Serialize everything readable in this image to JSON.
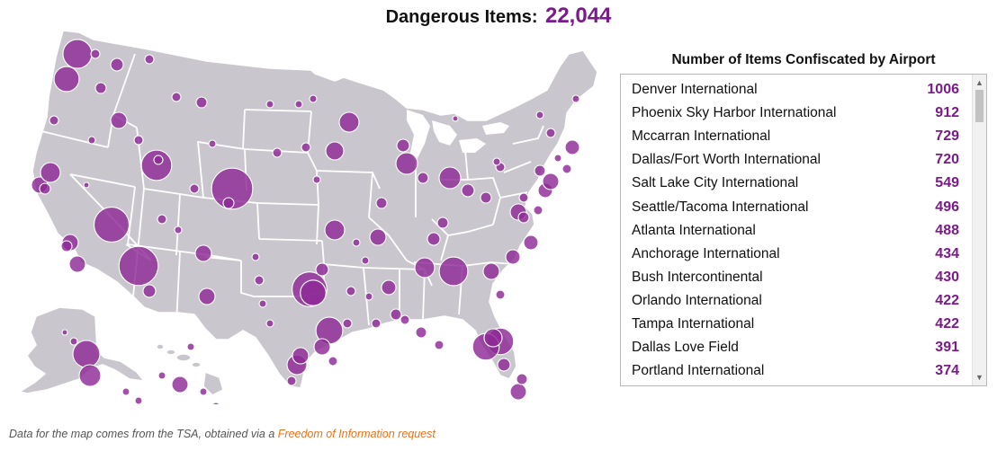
{
  "header": {
    "label": "Dangerous Items:",
    "count": "22,044"
  },
  "panel": {
    "title": "Number of Items Confiscated by Airport",
    "rows": [
      {
        "name": "Denver International",
        "value": "1006"
      },
      {
        "name": "Phoenix Sky Harbor International",
        "value": "912"
      },
      {
        "name": "Mccarran International",
        "value": "729"
      },
      {
        "name": "Dallas/Fort Worth International",
        "value": "720"
      },
      {
        "name": "Salt Lake City International",
        "value": "549"
      },
      {
        "name": "Seattle/Tacoma International",
        "value": "496"
      },
      {
        "name": "Atlanta International",
        "value": "488"
      },
      {
        "name": "Anchorage International",
        "value": "434"
      },
      {
        "name": "Bush Intercontinental",
        "value": "430"
      },
      {
        "name": "Orlando International",
        "value": "422"
      },
      {
        "name": "Tampa International",
        "value": "422"
      },
      {
        "name": "Dallas Love Field",
        "value": "391"
      },
      {
        "name": "Portland International",
        "value": "374"
      }
    ],
    "scroll_up_icon": "scroll-up-arrow-icon",
    "scroll_down_icon": "scroll-down-arrow-icon"
  },
  "footer": {
    "text": "Data for the map comes from the TSA, obtained via a ",
    "link_text": "Freedom of Information request"
  },
  "colors": {
    "accent": "#7b1a8a",
    "bubble": "#8e2a96",
    "land": "#c9c7cd",
    "link": "#e8731a"
  },
  "map": {
    "region": "United States",
    "markers": [
      {
        "airport": "Denver International",
        "value": 1006
      },
      {
        "airport": "Phoenix Sky Harbor International",
        "value": 912
      },
      {
        "airport": "Mccarran International",
        "value": 729
      },
      {
        "airport": "Dallas/Fort Worth International",
        "value": 720
      },
      {
        "airport": "Salt Lake City International",
        "value": 549
      },
      {
        "airport": "Seattle/Tacoma International",
        "value": 496
      },
      {
        "airport": "Atlanta International",
        "value": 488
      },
      {
        "airport": "Anchorage International",
        "value": 434
      },
      {
        "airport": "Bush Intercontinental",
        "value": 430
      },
      {
        "airport": "Orlando International",
        "value": 422
      },
      {
        "airport": "Tampa International",
        "value": 422
      },
      {
        "airport": "Dallas Love Field",
        "value": 391
      },
      {
        "airport": "Portland International",
        "value": 374
      }
    ]
  }
}
